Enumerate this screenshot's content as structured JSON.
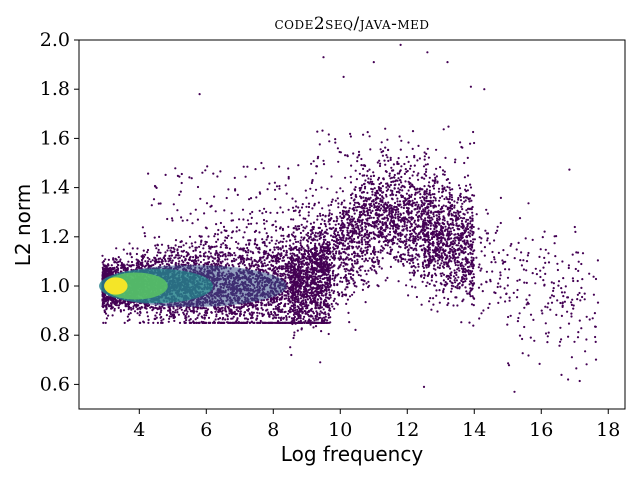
{
  "chart_data": {
    "type": "scatter",
    "title": "code2seq/java-med",
    "xlabel": "Log frequency",
    "ylabel": "L2 norm",
    "xlim": [
      2.2,
      18.5
    ],
    "ylim": [
      0.5,
      2.0
    ],
    "xticks": [
      4,
      6,
      8,
      10,
      12,
      14,
      16,
      18
    ],
    "yticks": [
      0.6,
      0.8,
      1.0,
      1.2,
      1.4,
      1.6,
      1.8,
      2.0
    ],
    "xtick_labels": [
      "4",
      "6",
      "8",
      "10",
      "12",
      "14",
      "16",
      "18"
    ],
    "ytick_labels": [
      "0.6",
      "0.8",
      "1.0",
      "1.2",
      "1.4",
      "1.6",
      "1.8",
      "2.0"
    ],
    "colormap": "viridis",
    "density_peak": {
      "x": 3.3,
      "y": 1.0
    },
    "dense_band": {
      "x_range": [
        2.9,
        9.5
      ],
      "y_range": [
        0.87,
        1.12
      ]
    },
    "outliers": [
      {
        "x": 5.8,
        "y": 1.78
      },
      {
        "x": 9.5,
        "y": 1.93
      },
      {
        "x": 10.1,
        "y": 1.85
      },
      {
        "x": 11.0,
        "y": 1.91
      },
      {
        "x": 11.8,
        "y": 1.98
      },
      {
        "x": 12.6,
        "y": 1.95
      },
      {
        "x": 13.2,
        "y": 1.91
      },
      {
        "x": 13.9,
        "y": 1.81
      },
      {
        "x": 14.3,
        "y": 1.8
      },
      {
        "x": 15.2,
        "y": 0.57
      },
      {
        "x": 16.8,
        "y": 0.62
      },
      {
        "x": 12.5,
        "y": 0.59
      },
      {
        "x": 17.6,
        "y": 0.89
      },
      {
        "x": 17.0,
        "y": 1.24
      },
      {
        "x": 9.4,
        "y": 0.69
      }
    ]
  },
  "colors": {
    "point": "#440154",
    "viridis": [
      "#440154",
      "#3b528b",
      "#21918c",
      "#5ec962",
      "#fde725"
    ]
  }
}
